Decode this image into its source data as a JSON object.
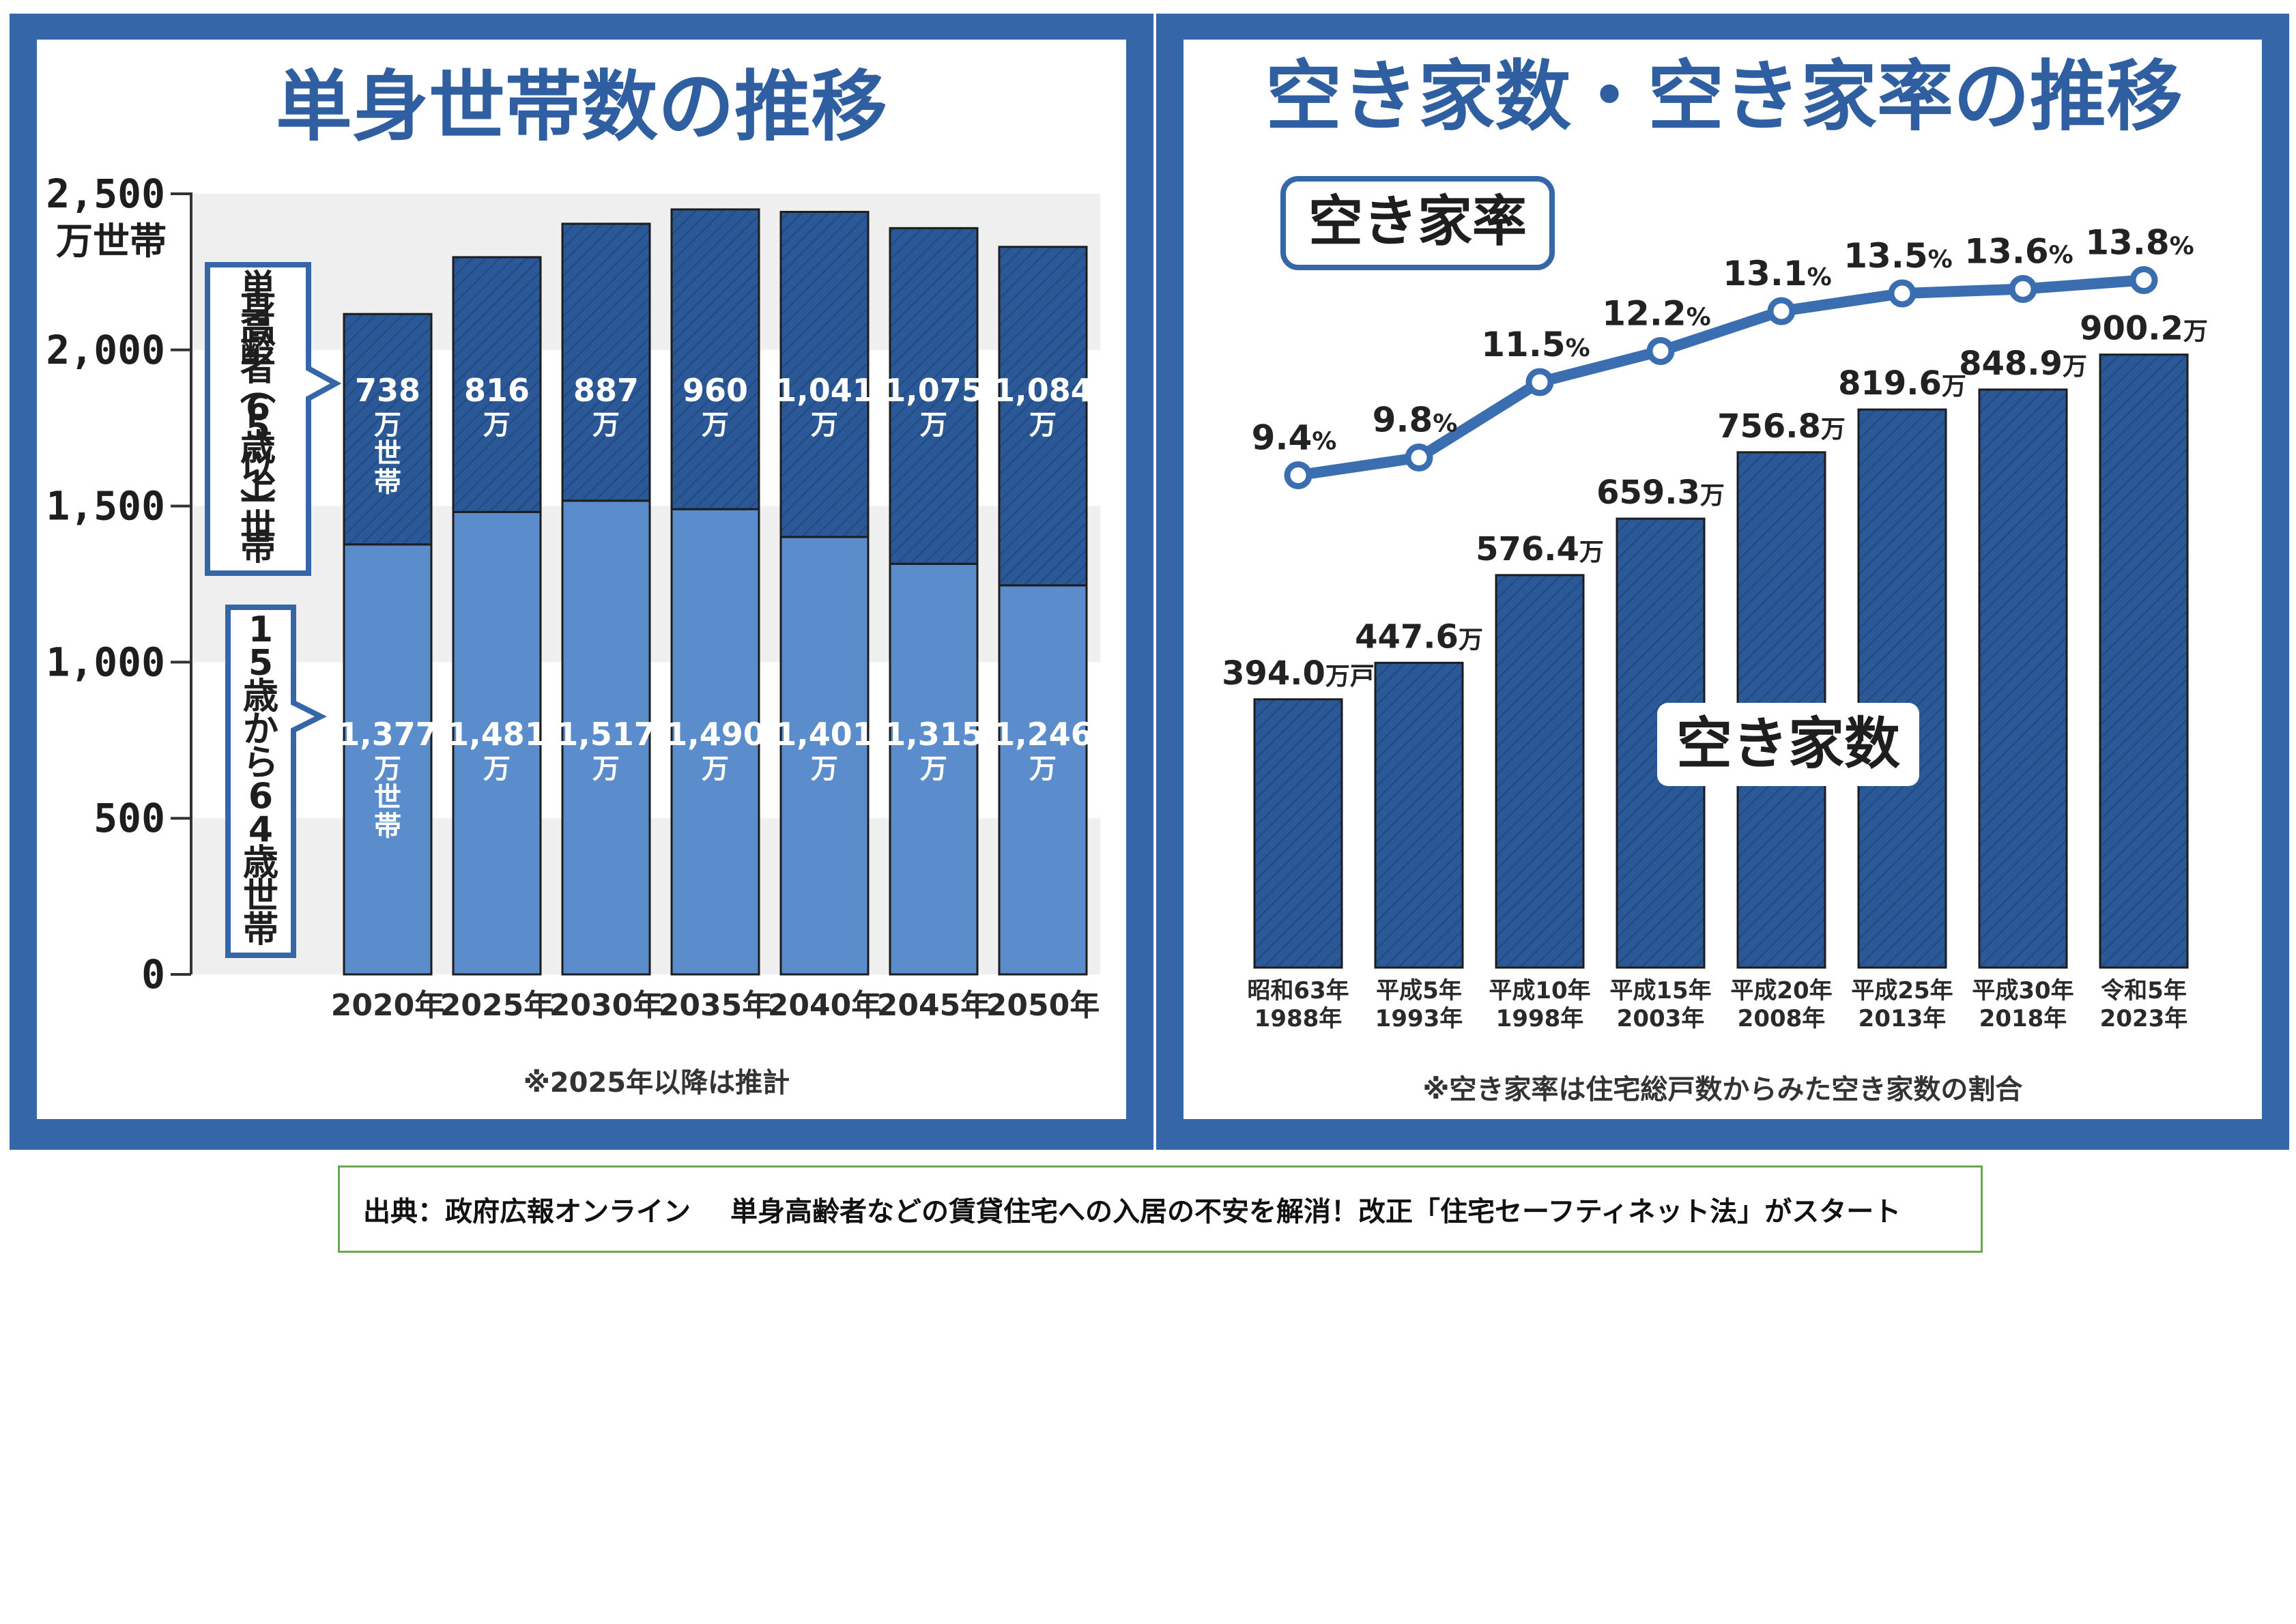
{
  "colors": {
    "frame": "#3567a8",
    "title": "#2f5fa0",
    "dark_bar": "#2b5896",
    "dark_bar_hatch": "#224a82",
    "light_bar": "#5b8ccb",
    "line": "#3a6eb0",
    "grid_band": "#efefef",
    "source_border": "#6aa84f"
  },
  "chart_data": [
    {
      "type": "bar",
      "stacked": true,
      "title": "単身世帯数の推移",
      "ylabel": "万世帯",
      "ylim": [
        0,
        2500
      ],
      "yticks": [
        "0",
        "500",
        "1,000",
        "1,500",
        "2,000",
        "2,500"
      ],
      "ytick_values": [
        0,
        500,
        1000,
        1500,
        2000,
        2500
      ],
      "categories": [
        "2020年",
        "2025年",
        "2030年",
        "2035年",
        "2040年",
        "2045年",
        "2050年"
      ],
      "series": [
        {
          "name": "15歳から64歳世帯",
          "values": [
            1377,
            1481,
            1517,
            1490,
            1401,
            1315,
            1246
          ],
          "labels": [
            "1,377",
            "1,481",
            "1,517",
            "1,490",
            "1,401",
            "1,315",
            "1,246"
          ],
          "units": [
            "万世帯",
            "万",
            "万",
            "万",
            "万",
            "万",
            "万"
          ]
        },
        {
          "name": "単身高齢者（65歳以上）世帯",
          "values": [
            738,
            816,
            887,
            960,
            1041,
            1075,
            1084
          ],
          "labels": [
            "738",
            "816",
            "887",
            "960",
            "1,041",
            "1,075",
            "1,084"
          ],
          "units": [
            "万世帯",
            "万",
            "万",
            "万",
            "万",
            "万",
            "万"
          ]
        }
      ],
      "legend": {
        "upper": "単身高齢者(65歳以上)世帯",
        "lower": "15歳から64歳世帯"
      },
      "note": "※2025年以降は推計"
    },
    {
      "type": "bar+line",
      "title": "空き家数・空き家率の推移",
      "categories": [
        "昭和63年",
        "平成5年",
        "平成10年",
        "平成15年",
        "平成20年",
        "平成25年",
        "平成30年",
        "令和5年"
      ],
      "categories_sub": [
        "1988年",
        "1993年",
        "1998年",
        "2003年",
        "2008年",
        "2013年",
        "2018年",
        "2023年"
      ],
      "bar_series": {
        "name": "空き家数",
        "values": [
          394.0,
          447.6,
          576.4,
          659.3,
          756.8,
          819.6,
          848.9,
          900.2
        ],
        "labels": [
          "394.0",
          "447.6",
          "576.4",
          "659.3",
          "756.8",
          "819.6",
          "848.9",
          "900.2"
        ],
        "units": [
          "万戸",
          "万",
          "万",
          "万",
          "万",
          "万",
          "万",
          "万"
        ],
        "ylim": [
          0,
          950
        ]
      },
      "line_series": {
        "name": "空き家率",
        "values": [
          9.4,
          9.8,
          11.5,
          12.2,
          13.1,
          13.5,
          13.6,
          13.8
        ],
        "labels": [
          "9.4",
          "9.8",
          "11.5",
          "12.2",
          "13.1",
          "13.5",
          "13.6",
          "13.8"
        ],
        "unit": "%",
        "ylim": [
          7.5,
          15.5
        ]
      },
      "note": "※空き家率は住宅総戸数からみた空き家数の割合"
    }
  ],
  "source": {
    "label": "出典：政府広報オンライン",
    "title": "単身高齢者などの賃貸住宅への入居の不安を解消！改正「住宅セーフティネット法」がスタート"
  }
}
